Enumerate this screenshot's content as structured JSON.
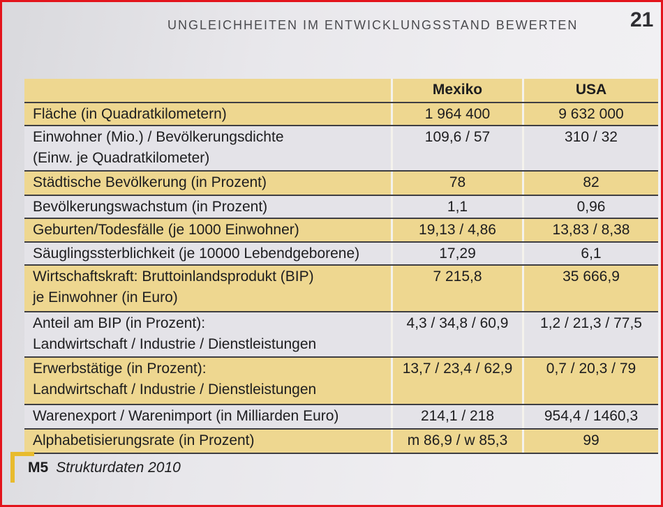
{
  "header": {
    "title": "UNGLEICHHEITEN IM ENTWICKLUNGSSTAND BEWERTEN",
    "page_number": "21"
  },
  "table": {
    "columns": {
      "mexiko": "Mexiko",
      "usa": "USA"
    },
    "rows": [
      {
        "label": [
          "Fläche (in Quadratkilometern)"
        ],
        "mexiko": "1 964 400",
        "usa": "9 632 000"
      },
      {
        "label": [
          "Einwohner (Mio.) / Bevölkerungsdichte",
          "(Einw. je Quadratkilometer)"
        ],
        "mexiko": "109,6 / 57",
        "usa": "310 / 32"
      },
      {
        "label": [
          "Städtische Bevölkerung (in Prozent)"
        ],
        "mexiko": "78",
        "usa": "82"
      },
      {
        "label": [
          "Bevölkerungswachstum (in Prozent)"
        ],
        "mexiko": "1,1",
        "usa": "0,96"
      },
      {
        "label": [
          "Geburten/Todesfälle (je 1000 Einwohner)"
        ],
        "mexiko": "19,13 / 4,86",
        "usa": "13,83 / 8,38"
      },
      {
        "label": [
          "Säuglingssterblichkeit (je 10000 Lebendgeborene)"
        ],
        "mexiko": "17,29",
        "usa": "6,1"
      },
      {
        "label": [
          "Wirtschaftskraft: Bruttoinlandsprodukt (BIP)",
          "je Einwohner (in Euro)"
        ],
        "mexiko": "7 215,8",
        "usa": "35 666,9"
      },
      {
        "label": [
          "Anteil am BIP (in Prozent):",
          "Landwirtschaft / Industrie / Dienstleistungen"
        ],
        "mexiko": "4,3 / 34,8 / 60,9",
        "usa": "1,2 / 21,3 / 77,5"
      },
      {
        "label": [
          "Erwerbstätige (in Prozent):",
          "Landwirtschaft / Industrie / Dienstleistungen"
        ],
        "mexiko": "13,7 / 23,4 / 62,9",
        "usa": "0,7 / 20,3 / 79"
      },
      {
        "label": [
          "Warenexport / Warenimport (in Milliarden Euro)"
        ],
        "mexiko": "214,1 / 218",
        "usa": "954,4 / 1460,3"
      },
      {
        "label": [
          "Alphabetisierungsrate (in Prozent)"
        ],
        "mexiko": "m 86,9 / w 85,3",
        "usa": "99"
      }
    ]
  },
  "caption": {
    "label": "M5",
    "text": "Strukturdaten 2010"
  },
  "colors": {
    "row_highlight": "#eed790",
    "row_plain": "#e4e3e8",
    "rule": "#3e3e42",
    "marker": "#e8bb2e",
    "frame": "#e3141c"
  }
}
